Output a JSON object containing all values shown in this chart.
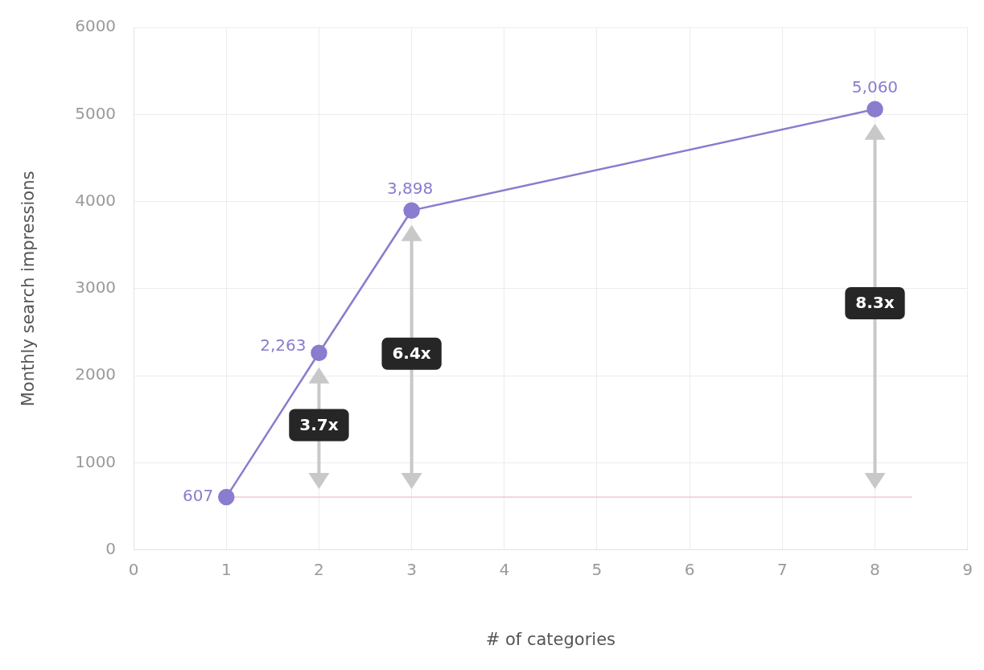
{
  "chart_data": {
    "type": "line",
    "xlabel": "# of categories",
    "ylabel": "Monthly search impressions",
    "x": [
      1,
      2,
      3,
      8
    ],
    "series": [
      {
        "color": "#8a7ccf",
        "values": [
          607,
          2263,
          3898,
          5060
        ],
        "value_labels": [
          "607",
          "2,263",
          "3,898",
          "5,060"
        ]
      }
    ],
    "xlim": [
      0,
      9
    ],
    "xticks": [
      0,
      1,
      2,
      3,
      4,
      5,
      6,
      7,
      8,
      9
    ],
    "ylim": [
      0,
      6000
    ],
    "yticks": [
      0,
      1000,
      2000,
      3000,
      4000,
      5000,
      6000
    ],
    "grid": true,
    "marker": "circle",
    "line_style": "solid",
    "ref_lines": [
      {
        "axis": "y",
        "value": 607,
        "color": "#f2c9cf"
      }
    ],
    "annotations": [
      "3.7x",
      "6.4x",
      "8.3x"
    ]
  }
}
